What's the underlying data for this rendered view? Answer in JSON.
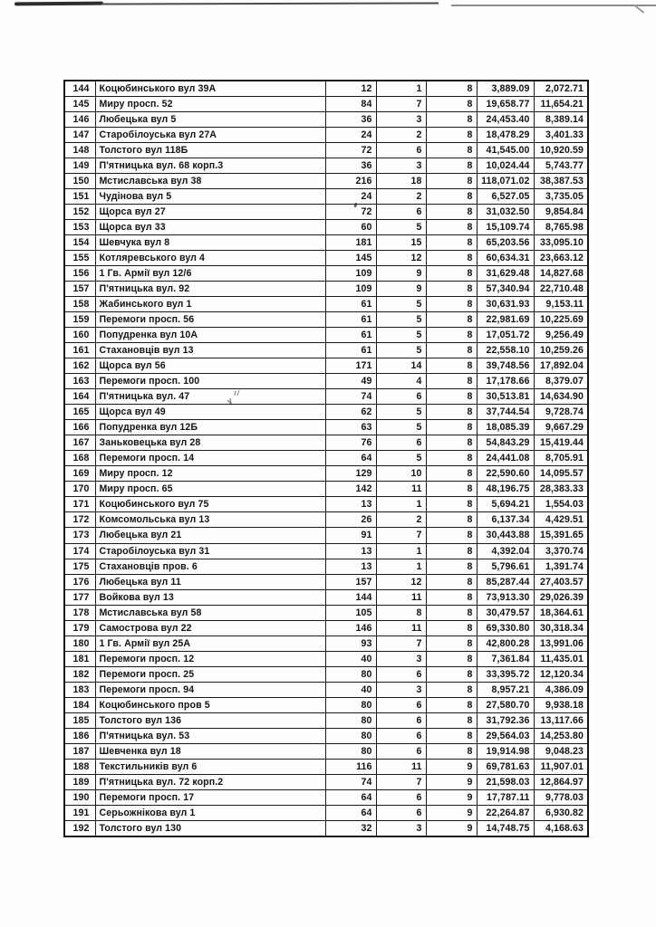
{
  "colors": {
    "ink": "#141414",
    "table_border": "#1b1b1b",
    "paper": "#fdfdfd"
  },
  "table": {
    "rows": [
      [
        "144",
        "Коцюбинського вул 39А",
        "12",
        "1",
        "8",
        "3,889.09",
        "2,072.71"
      ],
      [
        "145",
        "Миру просп. 52",
        "84",
        "7",
        "8",
        "19,658.77",
        "11,654.21"
      ],
      [
        "146",
        "Любецька вул 5",
        "36",
        "3",
        "8",
        "24,453.40",
        "8,389.14"
      ],
      [
        "147",
        "Старобілоуська вул 27А",
        "24",
        "2",
        "8",
        "18,478.29",
        "3,401.33"
      ],
      [
        "148",
        "Толстого вул 118Б",
        "72",
        "6",
        "8",
        "41,545.00",
        "10,920.59"
      ],
      [
        "149",
        "П'ятницька вул. 68 корп.3",
        "36",
        "3",
        "8",
        "10,024.44",
        "5,743.77"
      ],
      [
        "150",
        "Мстиславська вул 38",
        "216",
        "18",
        "8",
        "118,071.02",
        "38,387.53"
      ],
      [
        "151",
        "Чудінова вул 5",
        "24",
        "2",
        "8",
        "6,527.05",
        "3,735.05"
      ],
      [
        "152",
        "Щорса вул 27",
        "72",
        "6",
        "8",
        "31,032.50",
        "9,854.84"
      ],
      [
        "153",
        "Щорса вул 33",
        "60",
        "5",
        "8",
        "15,109.74",
        "8,765.98"
      ],
      [
        "154",
        "Шевчука вул 8",
        "181",
        "15",
        "8",
        "65,203.56",
        "33,095.10"
      ],
      [
        "155",
        "Котляревського вул 4",
        "145",
        "12",
        "8",
        "60,634.31",
        "23,663.12"
      ],
      [
        "156",
        "1 Гв. Армії вул 12/6",
        "109",
        "9",
        "8",
        "31,629.48",
        "14,827.68"
      ],
      [
        "157",
        "П'ятницька вул. 92",
        "109",
        "9",
        "8",
        "57,340.94",
        "22,710.48"
      ],
      [
        "158",
        "Жабинського вул 1",
        "61",
        "5",
        "8",
        "30,631.93",
        "9,153.11"
      ],
      [
        "159",
        "Перемоги просп. 56",
        "61",
        "5",
        "8",
        "22,981.69",
        "10,225.69"
      ],
      [
        "160",
        "Попудренка вул 10А",
        "61",
        "5",
        "8",
        "17,051.72",
        "9,256.49"
      ],
      [
        "161",
        "Стахановців вул 13",
        "61",
        "5",
        "8",
        "22,558.10",
        "10,259.26"
      ],
      [
        "162",
        "Щорса вул 56",
        "171",
        "14",
        "8",
        "39,748.56",
        "17,892.04"
      ],
      [
        "163",
        "Перемоги просп. 100",
        "49",
        "4",
        "8",
        "17,178.66",
        "8,379.07"
      ],
      [
        "164",
        "П'ятницька вул. 47",
        "74",
        "6",
        "8",
        "30,513.81",
        "14,634.90"
      ],
      [
        "165",
        "Щорса вул 49",
        "62",
        "5",
        "8",
        "37,744.54",
        "9,728.74"
      ],
      [
        "166",
        "Попудренка вул 12Б",
        "63",
        "5",
        "8",
        "18,085.39",
        "9,667.29"
      ],
      [
        "167",
        "Заньковецька вул 28",
        "76",
        "6",
        "8",
        "54,843.29",
        "15,419.44"
      ],
      [
        "168",
        "Перемоги просп. 14",
        "64",
        "5",
        "8",
        "24,441.08",
        "8,705.91"
      ],
      [
        "169",
        "Миру просп. 12",
        "129",
        "10",
        "8",
        "22,590.60",
        "14,095.57"
      ],
      [
        "170",
        "Миру просп. 65",
        "142",
        "11",
        "8",
        "48,196.75",
        "28,383.33"
      ],
      [
        "171",
        "Коцюбинського вул 75",
        "13",
        "1",
        "8",
        "5,694.21",
        "1,554.03"
      ],
      [
        "172",
        "Комсомольська вул 13",
        "26",
        "2",
        "8",
        "6,137.34",
        "4,429.51"
      ],
      [
        "173",
        "Любецька вул 21",
        "91",
        "7",
        "8",
        "30,443.88",
        "15,391.65"
      ],
      [
        "174",
        "Старобілоуська вул 31",
        "13",
        "1",
        "8",
        "4,392.04",
        "3,370.74"
      ],
      [
        "175",
        "Стахановців пров. 6",
        "13",
        "1",
        "8",
        "5,796.61",
        "1,391.74"
      ],
      [
        "176",
        "Любецька вул 11",
        "157",
        "12",
        "8",
        "85,287.44",
        "27,403.57"
      ],
      [
        "177",
        "Войкова вул 13",
        "144",
        "11",
        "8",
        "73,913.30",
        "29,026.39"
      ],
      [
        "178",
        "Мстиславська вул 58",
        "105",
        "8",
        "8",
        "30,479.57",
        "18,364.61"
      ],
      [
        "179",
        "Самострова вул 22",
        "146",
        "11",
        "8",
        "69,330.80",
        "30,318.34"
      ],
      [
        "180",
        "1 Гв. Армії вул 25А",
        "93",
        "7",
        "8",
        "42,800.28",
        "13,991.06"
      ],
      [
        "181",
        "Перемоги просп. 12",
        "40",
        "3",
        "8",
        "7,361.84",
        "11,435.01"
      ],
      [
        "182",
        "Перемоги просп. 25",
        "80",
        "6",
        "8",
        "33,395.72",
        "12,120.34"
      ],
      [
        "183",
        "Перемоги просп. 94",
        "40",
        "3",
        "8",
        "8,957.21",
        "4,386.09"
      ],
      [
        "184",
        "Коцюбинського пров 5",
        "80",
        "6",
        "8",
        "27,580.70",
        "9,938.18"
      ],
      [
        "185",
        "Толстого вул 136",
        "80",
        "6",
        "8",
        "31,792.36",
        "13,117.66"
      ],
      [
        "186",
        "П'ятницька вул. 53",
        "80",
        "6",
        "8",
        "29,564.03",
        "14,253.80"
      ],
      [
        "187",
        "Шевченка вул 18",
        "80",
        "6",
        "8",
        "19,914.98",
        "9,048.23"
      ],
      [
        "188",
        "Текстильників вул 6",
        "116",
        "11",
        "9",
        "69,781.63",
        "11,907.01"
      ],
      [
        "189",
        "П'ятницька вул. 72 корп.2",
        "74",
        "7",
        "9",
        "21,598.03",
        "12,864.97"
      ],
      [
        "190",
        "Перемоги просп. 17",
        "64",
        "6",
        "9",
        "17,787.11",
        "9,778.03"
      ],
      [
        "191",
        "Серьожнікова вул 1",
        "64",
        "6",
        "9",
        "22,264.87",
        "6,930.82"
      ],
      [
        "192",
        "Толстого вул 130",
        "32",
        "3",
        "9",
        "14,748.75",
        "4,168.63"
      ]
    ]
  }
}
